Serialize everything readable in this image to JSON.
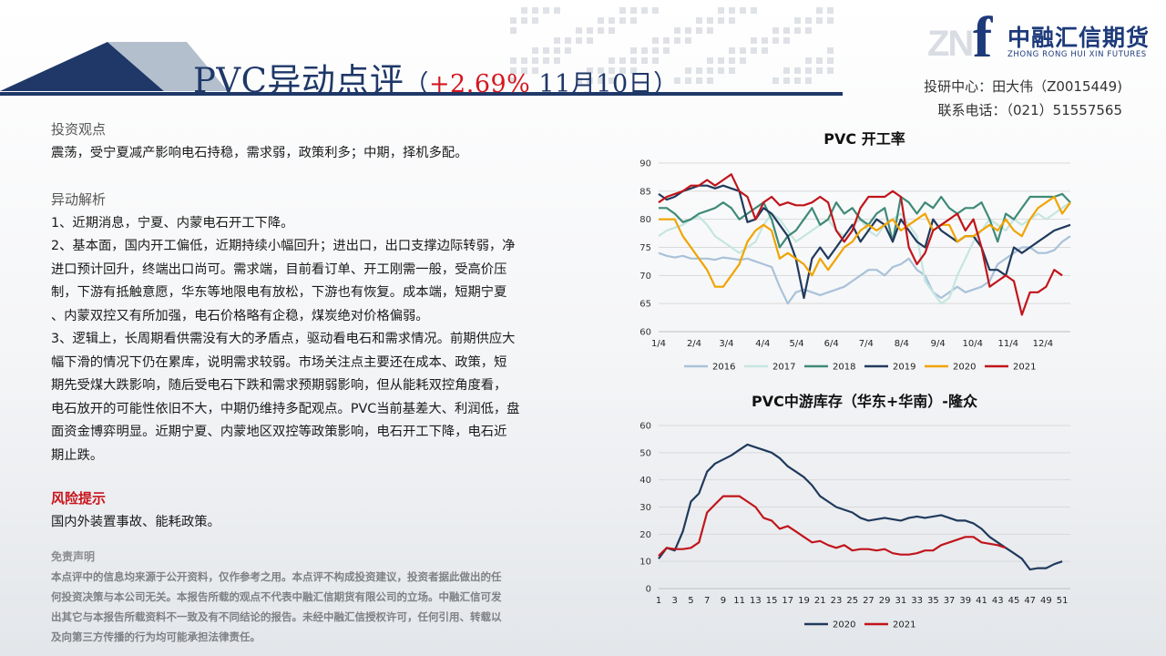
{
  "header": {
    "title_main": "PVC异动点评",
    "title_open": "（",
    "title_pct": "+2.69%",
    "title_date": " 11月10日）",
    "logo_cn": "中融汇信期货",
    "logo_en": "ZHONG RONG HUI XIN FUTURES",
    "contact_line1": "投研中心：田大伟（Z0015449)",
    "contact_line2": "联系电话：（021）51557565"
  },
  "colors": {
    "title_blue": "#1f3868",
    "accent_red": "#d51820",
    "risk_red": "#c8141b"
  },
  "content": {
    "view_heading": "投资观点",
    "view_text": "震荡，受宁夏减产影响电石持稳，需求弱，政策利多；中期，择机多配。",
    "analysis_heading": "异动解析",
    "analysis_lines": [
      "1、近期消息，宁夏、内蒙电石开工下降。",
      "2、基本面，国内开工偏低，近期持续小幅回升；进出口，出口支撑边际转弱，净",
      "进口预计回升，终端出口尚可。需求端，目前看订单、开工刚需一般，受高价压",
      "制，下游有抵触意愿，华东等地限电有放松，下游也有恢复。成本端，短期宁夏",
      "、内蒙双控又有所加强，电石价格略有企稳，煤炭绝对价格偏弱。",
      "3、逻辑上，长周期看供需没有大的矛盾点，驱动看电石和需求情况。前期供应大",
      "幅下滑的情况下仍在累库，说明需求较弱。市场关注点主要还在成本、政策，短",
      "期先受煤大跌影响，随后受电石下跌和需求预期弱影响，但从能耗双控角度看，",
      "电石放开的可能性依旧不大，中期仍维持多配观点。PVC当前基差大、利润低，盘",
      "面资金博弈明显。近期宁夏、内蒙地区双控等政策影响，电石开工下降，电石近",
      "期止跌。"
    ],
    "risk_heading": "风险提示",
    "risk_text": "国内外装置事故、能耗政策。",
    "disclaimer_heading": "免责声明",
    "disclaimer_lines": [
      "本点评中的信息均来源于公开资料，仅作参考之用。本点评不构成投资建议，投资者据此做出的任",
      "何投资决策与本公司无关。本报告所载的观点不代表中融汇信期货有限公司的立场。中融汇信可发",
      "出其它与本报告所载资料不一致及有不同结论的报告。未经中融汇信授权许可，任何引用、转载以",
      "及向第三方传播的行为均可能承担法律责任。"
    ]
  },
  "chart_data": [
    {
      "type": "line",
      "title": "PVC 开工率",
      "ylim": [
        60,
        90
      ],
      "yticks": [
        60,
        65,
        70,
        75,
        80,
        85,
        90
      ],
      "xlim": [
        1,
        52
      ],
      "xticks": [
        {
          "label": "1/4",
          "x": 1
        },
        {
          "label": "2/4",
          "x": 5.4
        },
        {
          "label": "3/4",
          "x": 9.4
        },
        {
          "label": "4/4",
          "x": 13.9
        },
        {
          "label": "5/4",
          "x": 18.1
        },
        {
          "label": "6/4",
          "x": 22.4
        },
        {
          "label": "7/4",
          "x": 26.7
        },
        {
          "label": "8/4",
          "x": 31.1
        },
        {
          "label": "9/4",
          "x": 35.6
        },
        {
          "label": "10/4",
          "x": 39.9
        },
        {
          "label": "11/4",
          "x": 44.3
        },
        {
          "label": "12/4",
          "x": 48.6
        }
      ],
      "grid": true,
      "legend": "bottom",
      "series": [
        {
          "name": "2016",
          "color": "#a9c2d9",
          "values": [
            74,
            73.5,
            73.2,
            73.5,
            73,
            73,
            73,
            72.8,
            73.2,
            73,
            72.8,
            73,
            72.5,
            72,
            71.5,
            68,
            65,
            67,
            67.5,
            67,
            66.5,
            67,
            67.5,
            68,
            69,
            70,
            71,
            71,
            70,
            71.5,
            72,
            73,
            71,
            70,
            67,
            66,
            67,
            68,
            67,
            67.5,
            68,
            69,
            72,
            73,
            74,
            75,
            75,
            74,
            74,
            74.5,
            76,
            77
          ]
        },
        {
          "name": "2017",
          "color": "#c5e6e0",
          "values": [
            77,
            78,
            78.5,
            79,
            80,
            80.5,
            79,
            77,
            76,
            75,
            74,
            75,
            76,
            79,
            81,
            80,
            78,
            76,
            77,
            78,
            79,
            80,
            78,
            77,
            79,
            80,
            78,
            77,
            79,
            80,
            81,
            79,
            77,
            69,
            67,
            65,
            66,
            70,
            73,
            76,
            78,
            80,
            79,
            78,
            80,
            79,
            80,
            81,
            80,
            81,
            82,
            83
          ]
        },
        {
          "name": "2018",
          "color": "#3f8a78",
          "values": [
            82,
            82,
            81,
            79.5,
            80,
            81,
            81.5,
            82,
            83,
            82,
            80,
            81,
            82,
            83,
            80,
            75,
            77,
            78,
            80,
            82,
            79,
            80,
            83,
            81,
            82,
            80,
            79,
            81,
            82,
            76,
            84,
            83,
            81,
            83,
            82,
            84,
            82,
            81,
            82,
            82,
            83,
            80,
            76,
            81,
            80,
            82,
            84,
            84,
            84,
            84,
            84.5,
            83
          ]
        },
        {
          "name": "2019",
          "color": "#203a5c",
          "values": [
            84.5,
            83.5,
            84,
            85,
            85.5,
            86,
            86,
            85.5,
            86,
            85.5,
            85,
            79.5,
            80,
            82,
            81,
            79,
            77,
            73,
            66,
            73,
            75,
            73,
            75,
            77,
            79,
            76,
            78,
            80,
            79,
            76,
            80,
            78,
            76,
            75,
            80,
            78,
            77,
            76,
            77,
            77,
            75,
            71,
            71,
            70,
            75,
            74,
            75,
            76,
            77,
            78,
            78.5,
            79
          ]
        },
        {
          "name": "2020",
          "color": "#f0a400",
          "values": [
            80,
            80,
            80,
            77,
            75,
            73,
            71,
            68,
            68,
            70,
            72,
            76,
            78,
            79,
            78,
            73,
            74,
            73,
            72,
            70,
            73,
            71,
            73,
            75,
            76,
            78,
            79,
            78,
            79,
            80,
            78,
            79,
            80,
            81,
            78,
            79,
            79,
            76,
            77,
            77,
            78,
            79,
            78,
            80,
            78,
            77,
            80,
            82,
            83,
            84,
            81,
            83
          ]
        },
        {
          "name": "2021",
          "color": "#c0151b",
          "values": [
            83,
            84,
            84.5,
            85,
            86,
            86,
            87,
            86,
            87,
            88,
            85,
            84,
            80,
            83,
            84,
            82.5,
            83,
            82.5,
            82.5,
            83,
            84,
            83,
            78,
            76,
            78,
            82,
            84,
            84,
            84,
            85,
            84,
            75,
            72,
            74,
            78,
            79,
            80,
            81,
            78,
            80,
            75,
            68,
            69,
            70,
            69,
            63,
            67,
            67,
            68,
            71,
            70,
            null
          ]
        }
      ]
    },
    {
      "type": "line",
      "title": "PVC中游库存（华东+华南）-隆众",
      "ylim": [
        0,
        60
      ],
      "yticks": [
        0,
        10,
        20,
        30,
        40,
        50,
        60
      ],
      "xlim": [
        1,
        52
      ],
      "xticks": [
        1,
        3,
        5,
        7,
        9,
        11,
        13,
        15,
        17,
        19,
        21,
        23,
        25,
        27,
        29,
        31,
        33,
        35,
        37,
        39,
        41,
        43,
        45,
        47,
        49,
        51
      ],
      "grid": true,
      "legend": "bottom",
      "series": [
        {
          "name": "2020",
          "color": "#203a5c",
          "values": [
            11,
            15,
            14,
            21,
            32,
            35,
            43,
            46,
            47.5,
            49,
            51,
            53,
            52,
            51,
            50,
            48,
            45,
            43,
            41,
            38,
            34,
            32,
            30,
            29,
            28,
            26,
            25,
            25.5,
            26,
            25.5,
            25,
            26,
            26.5,
            26,
            26.5,
            27,
            26,
            25,
            25,
            24,
            22,
            19,
            17,
            15,
            13,
            11,
            7,
            7.5,
            7.5,
            9,
            10,
            null
          ]
        },
        {
          "name": "2021",
          "color": "#c0151b",
          "values": [
            12,
            15,
            14.5,
            14.5,
            15,
            17,
            28,
            31,
            34,
            34,
            34,
            32,
            30,
            26,
            25,
            22,
            23,
            21,
            19,
            17,
            17.5,
            16,
            15,
            16,
            14,
            14.5,
            14.5,
            14,
            14.5,
            13,
            12.5,
            12.5,
            13,
            14,
            14,
            16,
            17,
            18,
            19,
            19,
            17,
            16.5,
            16,
            15,
            null,
            null,
            null,
            null,
            null,
            null,
            null,
            null
          ]
        }
      ]
    }
  ]
}
